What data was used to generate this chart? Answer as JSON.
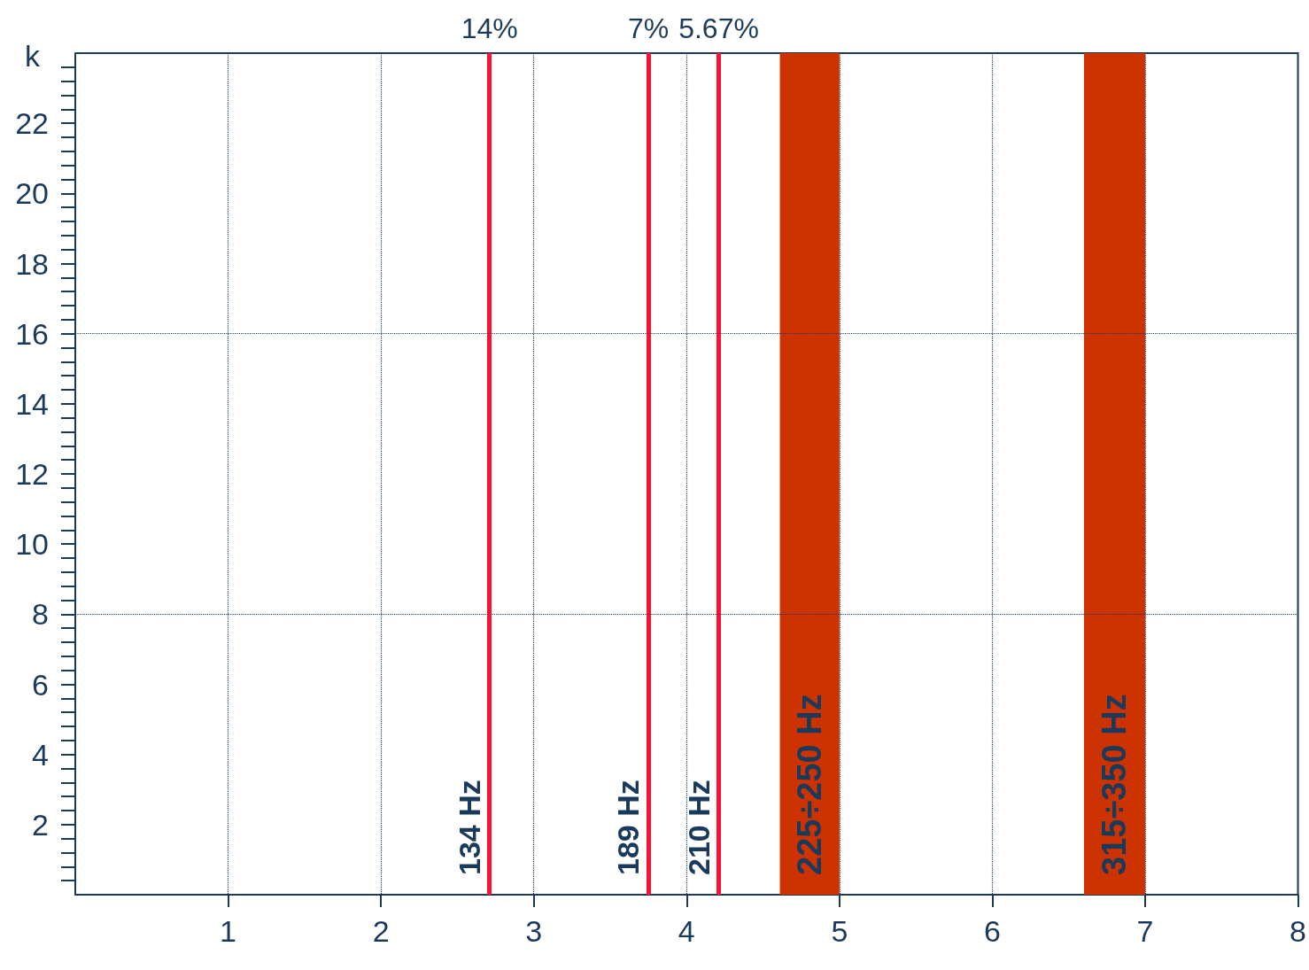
{
  "chart_data": {
    "type": "line",
    "ylabel": "k",
    "xlim": [
      0,
      8
    ],
    "xticks": [
      1,
      2,
      3,
      4,
      5,
      6,
      7,
      8
    ],
    "ylim": [
      0,
      24
    ],
    "yticks": [
      2,
      4,
      6,
      8,
      10,
      12,
      14,
      16,
      18,
      20,
      22
    ],
    "grid": "x",
    "ref_lines": [
      {
        "axis": "x",
        "value": 2.71,
        "label": "134 Hz",
        "color": "#ff1133",
        "line_style": "solid"
      },
      {
        "axis": "x",
        "value": 3.75,
        "label": "189 Hz",
        "color": "#ff1133",
        "line_style": "solid"
      },
      {
        "axis": "x",
        "value": 4.21,
        "label": "210 Hz",
        "color": "#ff1133",
        "line_style": "solid"
      },
      {
        "axis": "y",
        "value": 8,
        "color": "#1a3a5c",
        "line_style": "dotted"
      },
      {
        "axis": "y",
        "value": 16,
        "color": "#1a3a5c",
        "line_style": "dotted"
      }
    ],
    "bands": [
      {
        "axis": "x",
        "from": 4.61,
        "to": 5.0,
        "label": "225÷250 Hz",
        "color": "#cc3300"
      },
      {
        "axis": "x",
        "from": 6.6,
        "to": 7.0,
        "label": "315÷350 Hz",
        "color": "#cc3300"
      }
    ],
    "annotations": [
      {
        "text": "14%",
        "x": 2.71,
        "y": 24
      },
      {
        "text": "7%",
        "x": 3.75,
        "y": 24
      },
      {
        "text": "5.67%",
        "x": 4.21,
        "y": 24
      }
    ]
  }
}
